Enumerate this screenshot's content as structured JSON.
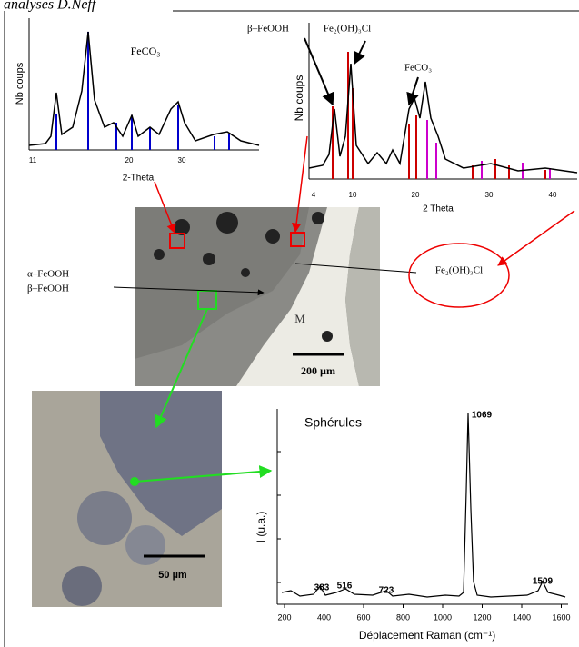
{
  "header": {
    "text": "analyses D.Neff"
  },
  "xrd_left": {
    "compound": "FeCO₃",
    "y_label": "Nb coups",
    "x_label": "2-Theta",
    "x_ticks": [
      "11",
      "20",
      "30"
    ]
  },
  "xrd_right": {
    "peak_labels": [
      "β–FeOOH",
      "Fe₂(OH)₃Cl",
      "FeCO₃"
    ],
    "y_label": "Nb coups",
    "x_label": "2 Theta",
    "x_ticks": [
      "4",
      "10",
      "20",
      "30",
      "40"
    ]
  },
  "micrograph_large": {
    "phase_labels": [
      "α–FeOOH",
      "β–FeOOH"
    ],
    "metal_label": "M",
    "scale_bar": "200 µm",
    "circled_phase": "Fe₂(OH)₃Cl"
  },
  "micrograph_small": {
    "scale_bar": "50 µm"
  },
  "raman": {
    "title": "Sphérules",
    "y_label": "I (u.a.)",
    "x_label": "Déplacement Raman (cm⁻¹)",
    "peaks": [
      "1069",
      "383",
      "516",
      "723",
      "1509"
    ],
    "x_ticks": [
      "200",
      "400",
      "600",
      "800",
      "1000",
      "1200",
      "1400",
      "1600"
    ]
  }
}
